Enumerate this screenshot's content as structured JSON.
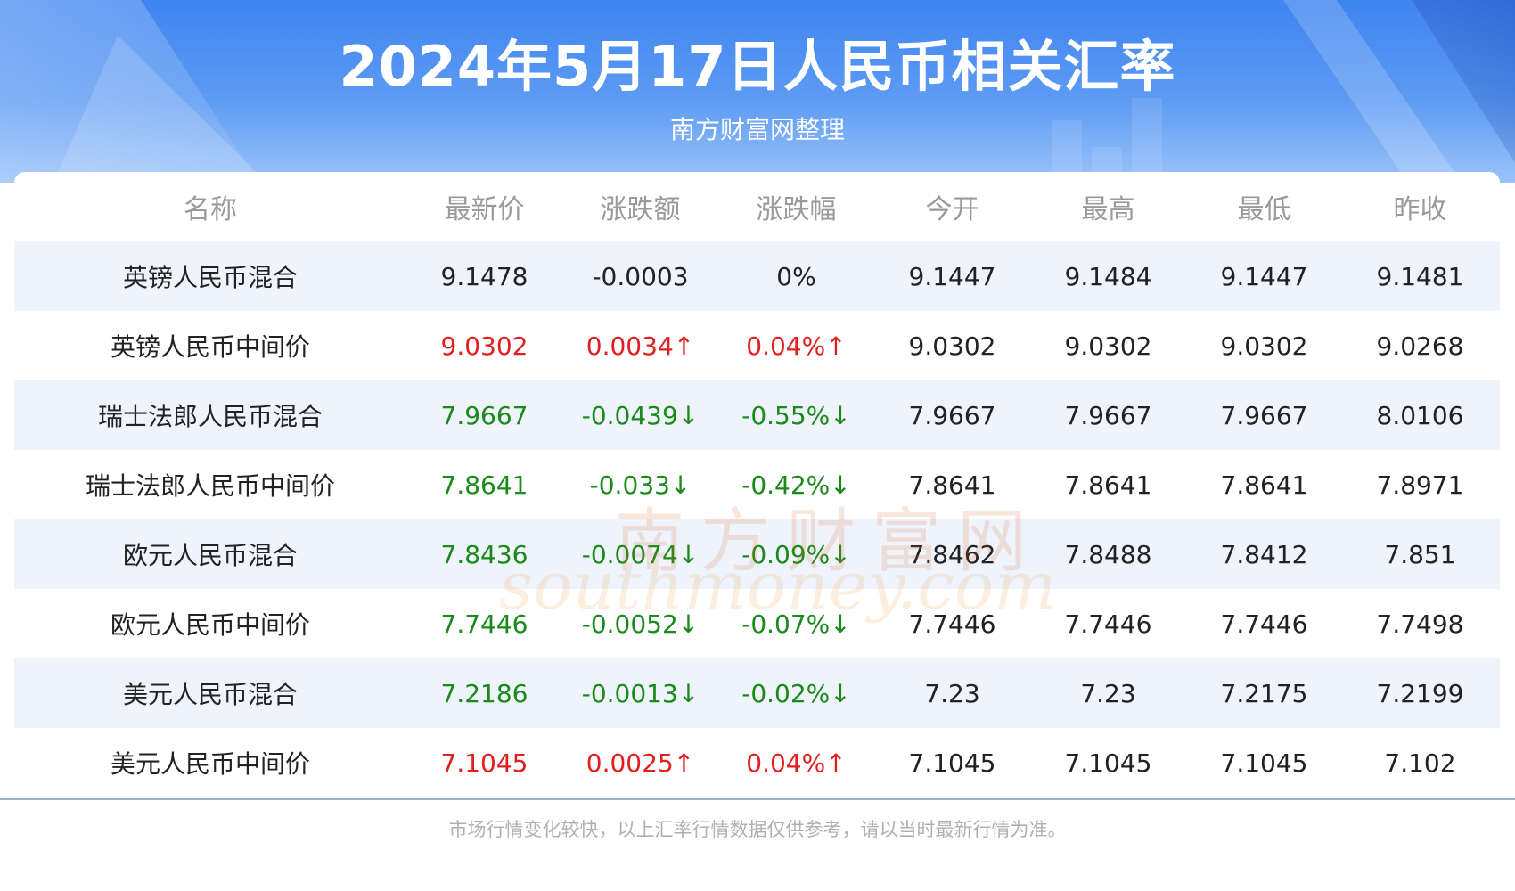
{
  "header": {
    "title": "2024年5月17日人民币相关汇率",
    "subtitle": "南方财富网整理"
  },
  "table": {
    "columns": [
      "名称",
      "最新价",
      "涨跌额",
      "涨跌幅",
      "今开",
      "最高",
      "最低",
      "昨收"
    ],
    "rows": [
      {
        "name": "英镑人民币混合",
        "latest": "9.1478",
        "change": "-0.0003",
        "pct": "0%",
        "open": "9.1447",
        "high": "9.1484",
        "low": "9.1447",
        "prev": "9.1481",
        "trend": "flat"
      },
      {
        "name": "英镑人民币中间价",
        "latest": "9.0302",
        "change": "0.0034↑",
        "pct": "0.04%↑",
        "open": "9.0302",
        "high": "9.0302",
        "low": "9.0302",
        "prev": "9.0268",
        "trend": "up"
      },
      {
        "name": "瑞士法郎人民币混合",
        "latest": "7.9667",
        "change": "-0.0439↓",
        "pct": "-0.55%↓",
        "open": "7.9667",
        "high": "7.9667",
        "low": "7.9667",
        "prev": "8.0106",
        "trend": "down"
      },
      {
        "name": "瑞士法郎人民币中间价",
        "latest": "7.8641",
        "change": "-0.033↓",
        "pct": "-0.42%↓",
        "open": "7.8641",
        "high": "7.8641",
        "low": "7.8641",
        "prev": "7.8971",
        "trend": "down"
      },
      {
        "name": "欧元人民币混合",
        "latest": "7.8436",
        "change": "-0.0074↓",
        "pct": "-0.09%↓",
        "open": "7.8462",
        "high": "7.8488",
        "low": "7.8412",
        "prev": "7.851",
        "trend": "down"
      },
      {
        "name": "欧元人民币中间价",
        "latest": "7.7446",
        "change": "-0.0052↓",
        "pct": "-0.07%↓",
        "open": "7.7446",
        "high": "7.7446",
        "low": "7.7446",
        "prev": "7.7498",
        "trend": "down"
      },
      {
        "name": "美元人民币混合",
        "latest": "7.2186",
        "change": "-0.0013↓",
        "pct": "-0.02%↓",
        "open": "7.23",
        "high": "7.23",
        "low": "7.2175",
        "prev": "7.2199",
        "trend": "down"
      },
      {
        "name": "美元人民币中间价",
        "latest": "7.1045",
        "change": "0.0025↑",
        "pct": "0.04%↑",
        "open": "7.1045",
        "high": "7.1045",
        "low": "7.1045",
        "prev": "7.102",
        "trend": "up"
      }
    ]
  },
  "footnote": "市场行情变化较快，以上汇率行情数据仅供参考，请以当时最新行情为准。",
  "watermark": {
    "cn": "南方财富网",
    "en": "southmoney.com"
  },
  "colors": {
    "up": "#e02020",
    "down": "#1a8a1a",
    "header_blue": "#3f84f0",
    "row_alt": "#eef3fc"
  }
}
